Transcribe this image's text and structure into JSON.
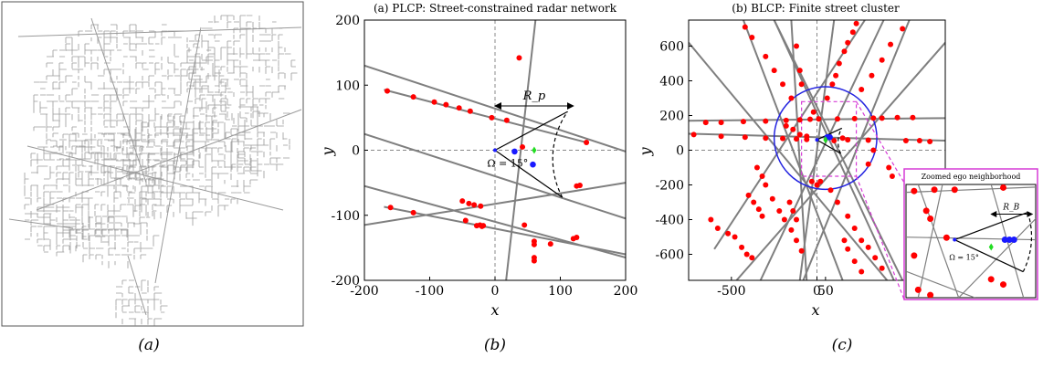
{
  "captions": {
    "a": "(a)",
    "b": "(b)",
    "c": "(c)"
  },
  "colors": {
    "street": "#7f7f7f",
    "map_street": "#9a9a9a",
    "radar": "#ff0000",
    "ego": "#1a1aff",
    "target": "#22dd22",
    "zoom_box": "#d63bd6",
    "circle": "#2323e0",
    "fov": "#000000"
  },
  "chart_data": [
    {
      "type": "street-map",
      "panel": "a"
    },
    {
      "type": "scatter",
      "panel": "b",
      "title": "(a) PLCP: Street-constrained radar network",
      "xlabel": "x",
      "ylabel": "y",
      "xlim": [
        -200,
        200
      ],
      "ylim": [
        -200,
        200
      ],
      "xticks": [
        -200,
        -100,
        0,
        100,
        200
      ],
      "yticks": [
        -200,
        -100,
        0,
        100,
        200
      ],
      "grid": false,
      "streets": [
        {
          "p1": [
            -200,
            130
          ],
          "p2": [
            200,
            -2
          ]
        },
        {
          "p1": [
            -170,
            93
          ],
          "p2": [
            140,
            12
          ]
        },
        {
          "p1": [
            -200,
            25
          ],
          "p2": [
            200,
            -105
          ]
        },
        {
          "p1": [
            -200,
            -115
          ],
          "p2": [
            200,
            -50
          ]
        },
        {
          "p1": [
            -170,
            -87
          ],
          "p2": [
            200,
            -160
          ]
        },
        {
          "p1": [
            -200,
            -55
          ],
          "p2": [
            200,
            -165
          ]
        },
        {
          "p1": [
            62,
            200
          ],
          "p2": [
            17,
            -200
          ]
        }
      ],
      "radars": [
        [
          -165,
          91
        ],
        [
          -125,
          82
        ],
        [
          -93,
          74
        ],
        [
          -75,
          70
        ],
        [
          -55,
          65
        ],
        [
          -38,
          60
        ],
        [
          -5,
          50
        ],
        [
          18,
          46
        ],
        [
          140,
          12
        ],
        [
          37,
          142
        ],
        [
          42,
          5
        ],
        [
          -160,
          -88
        ],
        [
          -125,
          -96
        ],
        [
          -45,
          -108
        ],
        [
          -28,
          -116
        ],
        [
          -20,
          -117
        ],
        [
          120,
          -136
        ],
        [
          125,
          -134
        ],
        [
          -50,
          -78
        ],
        [
          -40,
          -82
        ],
        [
          -32,
          -84
        ],
        [
          -22,
          -86
        ],
        [
          -23,
          -115
        ],
        [
          -18,
          -116
        ],
        [
          45,
          -115
        ],
        [
          125,
          -55
        ],
        [
          130,
          -54
        ],
        [
          60,
          -140
        ],
        [
          60,
          -145
        ],
        [
          85,
          -144
        ],
        [
          60,
          -170
        ],
        [
          60,
          -165
        ]
      ],
      "ego": [
        [
          30,
          -2
        ],
        [
          58,
          -22
        ]
      ],
      "ego_origin": [
        0,
        0
      ],
      "target": [
        [
          60,
          0
        ]
      ],
      "fov_angle_label": "Ω = 15°",
      "range_label": "R_p",
      "range_arrow_y": 68,
      "range_arrow_x": [
        0,
        120
      ]
    },
    {
      "type": "scatter",
      "panel": "c",
      "title": "(b) BLCP: Finite street cluster",
      "xlabel": "x",
      "ylabel": "y",
      "xlim": [
        -750,
        750
      ],
      "ylim": [
        -750,
        750
      ],
      "xticks": [
        -500,
        0,
        50
      ],
      "xtick_labels": [
        "-500",
        "0",
        "50"
      ],
      "yticks": [
        -600,
        -400,
        -200,
        0,
        200,
        400,
        600
      ],
      "grid": false,
      "circle": {
        "center": [
          50,
          70
        ],
        "radius": 300
      },
      "zoom_box": {
        "x": [
          -90,
          230
        ],
        "y": [
          -150,
          280
        ]
      },
      "streets": [
        {
          "p1": [
            -750,
            170
          ],
          "p2": [
            750,
            185
          ]
        },
        {
          "p1": [
            -750,
            95
          ],
          "p2": [
            750,
            55
          ]
        },
        {
          "p1": [
            -430,
            750
          ],
          "p2": [
            150,
            -750
          ]
        },
        {
          "p1": [
            -330,
            -750
          ],
          "p2": [
            390,
            750
          ]
        },
        {
          "p1": [
            -80,
            -750
          ],
          "p2": [
            540,
            750
          ]
        },
        {
          "p1": [
            -470,
            -750
          ],
          "p2": [
            750,
            620
          ]
        },
        {
          "p1": [
            -750,
            620
          ],
          "p2": [
            410,
            -750
          ]
        },
        {
          "p1": [
            -600,
            -570
          ],
          "p2": [
            280,
            750
          ]
        },
        {
          "p1": [
            -150,
            750
          ],
          "p2": [
            -60,
            -750
          ]
        },
        {
          "p1": [
            500,
            -750
          ],
          "p2": [
            -250,
            750
          ]
        },
        {
          "p1": [
            -250,
            750
          ],
          "p2": [
            450,
            -750
          ]
        },
        {
          "p1": [
            100,
            750
          ],
          "p2": [
            -100,
            -750
          ]
        }
      ],
      "radars": [
        [
          -420,
          710
        ],
        [
          -380,
          650
        ],
        [
          -300,
          540
        ],
        [
          -250,
          460
        ],
        [
          -200,
          380
        ],
        [
          -150,
          300
        ],
        [
          230,
          730
        ],
        [
          210,
          680
        ],
        [
          180,
          620
        ],
        [
          160,
          570
        ],
        [
          130,
          500
        ],
        [
          110,
          430
        ],
        [
          90,
          380
        ],
        [
          60,
          300
        ],
        [
          -120,
          600
        ],
        [
          -100,
          460
        ],
        [
          -90,
          380
        ],
        [
          500,
          700
        ],
        [
          430,
          610
        ],
        [
          380,
          520
        ],
        [
          320,
          430
        ],
        [
          260,
          350
        ],
        [
          -650,
          160
        ],
        [
          -560,
          160
        ],
        [
          -430,
          165
        ],
        [
          -300,
          168
        ],
        [
          -180,
          172
        ],
        [
          -100,
          175
        ],
        [
          -40,
          178
        ],
        [
          120,
          180
        ],
        [
          220,
          182
        ],
        [
          330,
          185
        ],
        [
          380,
          185
        ],
        [
          470,
          188
        ],
        [
          560,
          188
        ],
        [
          -720,
          90
        ],
        [
          -560,
          80
        ],
        [
          -420,
          75
        ],
        [
          -300,
          70
        ],
        [
          -200,
          68
        ],
        [
          -120,
          65
        ],
        [
          -60,
          62
        ],
        [
          180,
          60
        ],
        [
          300,
          58
        ],
        [
          520,
          55
        ],
        [
          600,
          55
        ],
        [
          660,
          50
        ],
        [
          -180,
          140
        ],
        [
          -140,
          120
        ],
        [
          -100,
          90
        ],
        [
          -60,
          80
        ],
        [
          -20,
          220
        ],
        [
          10,
          180
        ],
        [
          -350,
          -100
        ],
        [
          -320,
          -150
        ],
        [
          -300,
          -200
        ],
        [
          -260,
          -280
        ],
        [
          -220,
          -350
        ],
        [
          -190,
          -400
        ],
        [
          -150,
          -460
        ],
        [
          -120,
          -520
        ],
        [
          -90,
          -580
        ],
        [
          -480,
          -500
        ],
        [
          -440,
          -560
        ],
        [
          -410,
          -600
        ],
        [
          -380,
          -620
        ],
        [
          -400,
          -260
        ],
        [
          -370,
          -300
        ],
        [
          -340,
          -340
        ],
        [
          -320,
          -380
        ],
        [
          -620,
          -400
        ],
        [
          -580,
          -450
        ],
        [
          -160,
          -300
        ],
        [
          -140,
          -350
        ],
        [
          -120,
          -400
        ],
        [
          80,
          -230
        ],
        [
          120,
          -300
        ],
        [
          180,
          -380
        ],
        [
          220,
          -450
        ],
        [
          260,
          -520
        ],
        [
          300,
          -560
        ],
        [
          340,
          -620
        ],
        [
          380,
          -680
        ],
        [
          260,
          -700
        ],
        [
          220,
          -640
        ],
        [
          180,
          -570
        ],
        [
          160,
          -520
        ],
        [
          330,
          0
        ],
        [
          300,
          -80
        ],
        [
          420,
          -100
        ],
        [
          440,
          -150
        ],
        [
          -520,
          -480
        ],
        [
          0,
          -200
        ],
        [
          -30,
          -180
        ],
        [
          20,
          -180
        ],
        [
          150,
          70
        ],
        [
          100,
          55
        ]
      ],
      "ego": [
        [
          60,
          75
        ],
        [
          75,
          75
        ]
      ],
      "ego_origin": [
        0,
        60
      ],
      "target": [
        [
          50,
          60
        ]
      ],
      "inset": {
        "title": "Zoomed ego neighborhood",
        "fov_angle_label": "Ω = 15°",
        "range_label": "R_B"
      }
    }
  ]
}
